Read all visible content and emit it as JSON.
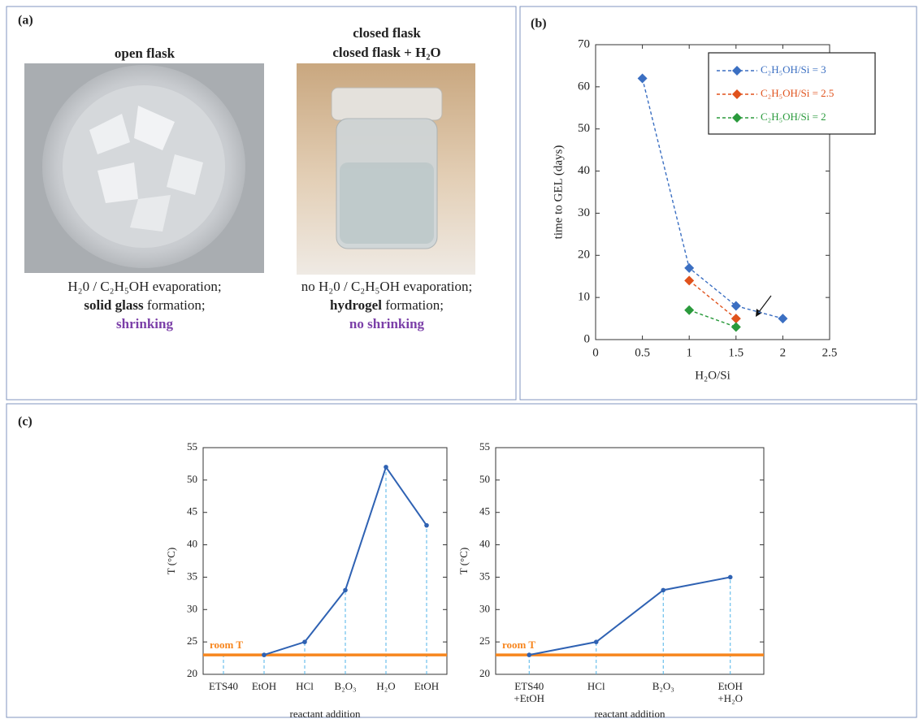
{
  "panel_labels": {
    "a": "(a)",
    "b": "(b)",
    "c": "(c)"
  },
  "panel_a": {
    "left": {
      "title": "open flask",
      "caption": {
        "line1": "H₂0 / C₂H₅OH  evaporation;",
        "line2_bold": "solid glass",
        "line2": " formation;",
        "line3": "shrinking"
      }
    },
    "right": {
      "title": [
        "closed flask",
        "closed flask + H₂O"
      ],
      "caption": {
        "line1": "no H₂0 / C₂H₅OH  evaporation;",
        "line2_bold": "hydrogel",
        "line2": " formation;",
        "line3": "no shrinking"
      }
    }
  },
  "chart_data": [
    {
      "type": "line",
      "xlabel": "H₂O/Si",
      "ylabel": "time to GEL (days)",
      "xlim": [
        0,
        2.5
      ],
      "xticks": [
        0,
        0.5,
        1,
        1.5,
        2,
        2.5
      ],
      "ylim": [
        0,
        70
      ],
      "yticks": [
        0,
        10,
        20,
        30,
        40,
        50,
        60,
        70
      ],
      "line_style": "dashed",
      "marker": "diamond",
      "legend": "upper right",
      "series": [
        {
          "name": "C₂H₅OH/Si = 3",
          "color": "#3b6fc2",
          "x": [
            0.5,
            1,
            1.5,
            2
          ],
          "values": [
            62,
            17,
            8,
            5
          ]
        },
        {
          "name": "C₂H₅OH/Si = 2.5",
          "color": "#e0521c",
          "x": [
            1,
            1.5
          ],
          "values": [
            14,
            5
          ]
        },
        {
          "name": "C₂H₅OH/Si = 2",
          "color": "#2a9a3c",
          "x": [
            1,
            1.5
          ],
          "values": [
            7,
            3
          ]
        }
      ]
    },
    {
      "type": "line",
      "xlabel": "reactant addition",
      "ylabel": "T (°C)",
      "categories": [
        "ETS40",
        "EtOH",
        "HCl",
        "B₂O₃",
        "H₂O",
        "EtOH"
      ],
      "values": [
        null,
        23,
        25,
        33,
        52,
        43
      ],
      "color": "#2f62b3",
      "ylim": [
        20,
        55
      ],
      "yticks": [
        20,
        25,
        30,
        35,
        40,
        45,
        50,
        55
      ],
      "line_style": "solid",
      "marker": "circle",
      "drop_lines": true,
      "reference_line": {
        "value": 23,
        "label": "room T",
        "color": "#f7861e"
      }
    },
    {
      "type": "line",
      "xlabel": "reactant addition",
      "ylabel": "T (°C)",
      "categories": [
        [
          "ETS40",
          "+EtOH"
        ],
        "HCl",
        "B₂O₃",
        [
          "EtOH",
          "+H₂O"
        ]
      ],
      "values": [
        23,
        25,
        33,
        35
      ],
      "color": "#2f62b3",
      "ylim": [
        20,
        55
      ],
      "yticks": [
        20,
        25,
        30,
        35,
        40,
        45,
        50,
        55
      ],
      "line_style": "solid",
      "marker": "circle",
      "drop_lines": true,
      "reference_line": {
        "value": 23,
        "label": "room T",
        "color": "#f7861e"
      }
    }
  ]
}
